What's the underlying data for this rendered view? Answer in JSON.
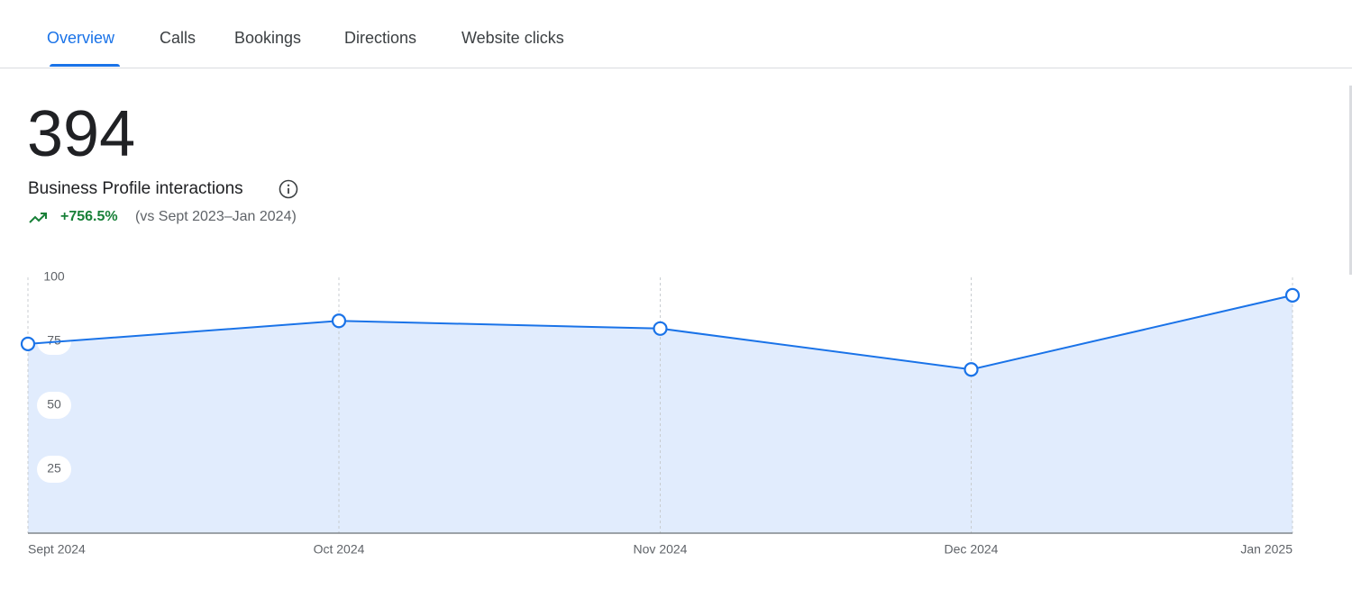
{
  "tabs": [
    "Overview",
    "Calls",
    "Bookings",
    "Directions",
    "Website clicks"
  ],
  "summary": {
    "total": 394,
    "label": "Business Profile interactions",
    "change": "+756.5%",
    "comparison": "(vs Sept 2023–Jan 2024)"
  },
  "chart_data": {
    "type": "area",
    "categories": [
      "Sept 2024",
      "Oct 2024",
      "Nov 2024",
      "Dec 2024",
      "Jan 2025"
    ],
    "values": [
      74,
      83,
      80,
      64,
      93
    ],
    "color": "#1a73e8",
    "fill_color": "#e1ecfd",
    "ylim": [
      0,
      100
    ],
    "yticks": [
      25,
      50,
      75,
      100
    ],
    "grid": true
  }
}
